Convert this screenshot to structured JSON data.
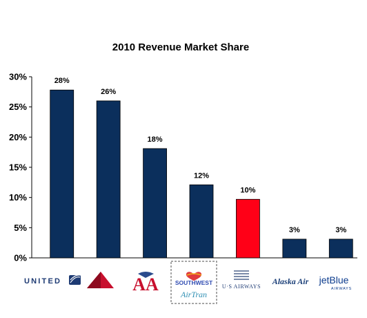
{
  "chart_data": {
    "type": "bar",
    "title": "2010 Revenue Market Share",
    "xlabel": "",
    "ylabel": "",
    "ylim": [
      0,
      30
    ],
    "yticks": [
      "0%",
      "5%",
      "10%",
      "15%",
      "20%",
      "25%",
      "30%"
    ],
    "ytick_values": [
      0,
      5,
      10,
      15,
      20,
      25,
      30
    ],
    "grid": false,
    "categories": [
      "UNITED",
      "Delta",
      "AA",
      "SOUTHWEST / AirTran",
      "US AIRWAYS",
      "Alaska Air",
      "jetBlue AIRWAYS"
    ],
    "values": [
      27.8,
      26.0,
      18.1,
      12.1,
      9.7,
      3.1,
      3.1
    ],
    "data_labels": [
      "28%",
      "26%",
      "18%",
      "12%",
      "10%",
      "3%",
      "3%"
    ],
    "highlight_index": 4
  },
  "logos": {
    "united": "UNITED",
    "southwest": "SOUTHWEST",
    "airtran": "AirTran",
    "usairways": "U·S AIRWAYS",
    "alaska": "Alaska Air",
    "jetblue_top": "jetBlue",
    "jetblue_bottom": "AIRWAYS",
    "aa": "AA"
  },
  "colors": {
    "bar": "#0b2f5c",
    "highlight": "#ff0017",
    "united_logo": "#1d3a73",
    "delta_red": "#c8102e",
    "aa_red": "#c8102e",
    "aa_blue": "#2a4b8d",
    "southwest_blue": "#304cb2",
    "airtran_teal": "#2f8fb3",
    "usairways_blue": "#1d3a73",
    "alaska_blue": "#1b3f78",
    "jetblue_blue": "#0a3a8c"
  },
  "icons": [
    "united-globe-icon",
    "delta-widget-icon",
    "aa-eagle-icon",
    "southwest-heart-icon",
    "usairways-flag-icon"
  ]
}
